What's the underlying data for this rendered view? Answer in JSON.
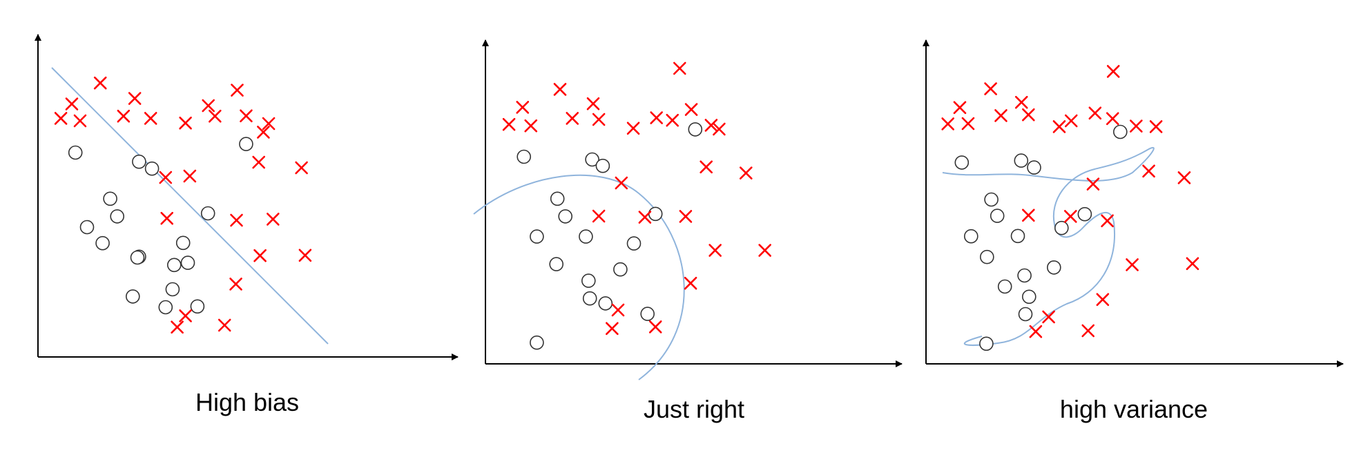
{
  "colors": {
    "axis": "#000000",
    "circle_stroke": "#333333",
    "cross": "#ff0000",
    "boundary": "#8fb4dc"
  },
  "panels": [
    {
      "id": "high-bias",
      "caption": "High bias",
      "boundary_shape": "straight-line",
      "circles": [
        [
          0.113,
          0.74
        ],
        [
          0.305,
          0.707
        ],
        [
          0.344,
          0.682
        ],
        [
          0.218,
          0.573
        ],
        [
          0.239,
          0.509
        ],
        [
          0.148,
          0.47
        ],
        [
          0.438,
          0.413
        ],
        [
          0.305,
          0.363
        ],
        [
          0.411,
          0.333
        ],
        [
          0.481,
          0.183
        ],
        [
          0.513,
          0.52
        ],
        [
          0.195,
          0.412
        ],
        [
          0.628,
          0.771
        ],
        [
          0.286,
          0.219
        ],
        [
          0.406,
          0.245
        ],
        [
          0.452,
          0.341
        ],
        [
          0.385,
          0.18
        ],
        [
          0.3,
          0.36
        ]
      ],
      "crosses": [
        [
          0.069,
          0.864
        ],
        [
          0.102,
          0.916
        ],
        [
          0.127,
          0.855
        ],
        [
          0.188,
          0.992
        ],
        [
          0.292,
          0.936
        ],
        [
          0.258,
          0.872
        ],
        [
          0.34,
          0.864
        ],
        [
          0.445,
          0.847
        ],
        [
          0.534,
          0.872
        ],
        [
          0.601,
          0.966
        ],
        [
          0.628,
          0.873
        ],
        [
          0.68,
          0.814
        ],
        [
          0.696,
          0.845
        ],
        [
          0.666,
          0.705
        ],
        [
          0.795,
          0.685
        ],
        [
          0.458,
          0.655
        ],
        [
          0.389,
          0.502
        ],
        [
          0.599,
          0.495
        ],
        [
          0.709,
          0.499
        ],
        [
          0.67,
          0.367
        ],
        [
          0.806,
          0.368
        ],
        [
          0.597,
          0.264
        ],
        [
          0.445,
          0.149
        ],
        [
          0.42,
          0.108
        ],
        [
          0.563,
          0.115
        ],
        [
          0.514,
          0.91
        ],
        [
          0.385,
          0.65
        ]
      ]
    },
    {
      "id": "just-right",
      "caption": "Just right",
      "boundary_shape": "arc",
      "circles": [
        [
          0.116,
          0.75
        ],
        [
          0.322,
          0.74
        ],
        [
          0.354,
          0.717
        ],
        [
          0.217,
          0.598
        ],
        [
          0.241,
          0.534
        ],
        [
          0.155,
          0.461
        ],
        [
          0.448,
          0.436
        ],
        [
          0.303,
          0.461
        ],
        [
          0.407,
          0.342
        ],
        [
          0.489,
          0.181
        ],
        [
          0.513,
          0.543
        ],
        [
          0.214,
          0.361
        ],
        [
          0.633,
          0.849
        ],
        [
          0.311,
          0.301
        ],
        [
          0.362,
          0.219
        ],
        [
          0.315,
          0.237
        ],
        [
          0.155,
          0.077
        ]
      ],
      "crosses": [
        [
          0.071,
          0.867
        ],
        [
          0.112,
          0.929
        ],
        [
          0.137,
          0.862
        ],
        [
          0.225,
          0.994
        ],
        [
          0.325,
          0.942
        ],
        [
          0.262,
          0.889
        ],
        [
          0.342,
          0.885
        ],
        [
          0.446,
          0.853
        ],
        [
          0.586,
          1.07
        ],
        [
          0.516,
          0.891
        ],
        [
          0.621,
          0.921
        ],
        [
          0.681,
          0.864
        ],
        [
          0.705,
          0.85
        ],
        [
          0.666,
          0.713
        ],
        [
          0.786,
          0.691
        ],
        [
          0.41,
          0.655
        ],
        [
          0.342,
          0.535
        ],
        [
          0.481,
          0.531
        ],
        [
          0.604,
          0.534
        ],
        [
          0.693,
          0.411
        ],
        [
          0.843,
          0.411
        ],
        [
          0.619,
          0.292
        ],
        [
          0.4,
          0.195
        ],
        [
          0.382,
          0.128
        ],
        [
          0.513,
          0.134
        ],
        [
          0.564,
          0.882
        ]
      ]
    },
    {
      "id": "high-variance",
      "caption": "high variance",
      "boundary_shape": "wiggly-curve",
      "circles": [
        [
          0.108,
          0.729
        ],
        [
          0.287,
          0.736
        ],
        [
          0.326,
          0.711
        ],
        [
          0.197,
          0.595
        ],
        [
          0.215,
          0.536
        ],
        [
          0.136,
          0.462
        ],
        [
          0.409,
          0.492
        ],
        [
          0.277,
          0.463
        ],
        [
          0.386,
          0.349
        ],
        [
          0.238,
          0.28
        ],
        [
          0.479,
          0.542
        ],
        [
          0.184,
          0.387
        ],
        [
          0.586,
          0.84
        ],
        [
          0.3,
          0.18
        ],
        [
          0.311,
          0.243
        ],
        [
          0.297,
          0.32
        ],
        [
          0.182,
          0.073
        ]
      ],
      "crosses": [
        [
          0.066,
          0.869
        ],
        [
          0.102,
          0.928
        ],
        [
          0.127,
          0.87
        ],
        [
          0.195,
          0.996
        ],
        [
          0.288,
          0.947
        ],
        [
          0.226,
          0.899
        ],
        [
          0.309,
          0.902
        ],
        [
          0.402,
          0.859
        ],
        [
          0.565,
          1.059
        ],
        [
          0.438,
          0.88
        ],
        [
          0.563,
          0.888
        ],
        [
          0.634,
          0.861
        ],
        [
          0.694,
          0.859
        ],
        [
          0.672,
          0.698
        ],
        [
          0.779,
          0.674
        ],
        [
          0.504,
          0.651
        ],
        [
          0.309,
          0.538
        ],
        [
          0.436,
          0.534
        ],
        [
          0.547,
          0.518
        ],
        [
          0.622,
          0.359
        ],
        [
          0.804,
          0.363
        ],
        [
          0.533,
          0.233
        ],
        [
          0.37,
          0.17
        ],
        [
          0.331,
          0.117
        ],
        [
          0.489,
          0.12
        ],
        [
          0.51,
          0.908
        ]
      ]
    }
  ]
}
